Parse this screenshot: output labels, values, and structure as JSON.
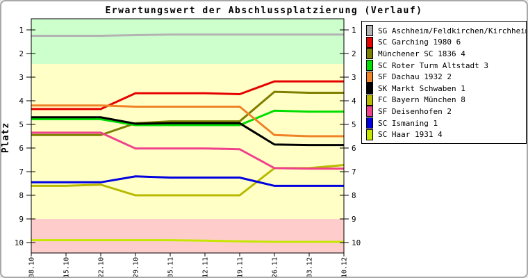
{
  "title": "Erwartungswert der Abschlussplatzierung (Verlauf)",
  "ylabel": "Platz",
  "chart_data": {
    "type": "line",
    "x": [
      "08.10",
      "15.10",
      "22.10",
      "29.10",
      "05.11",
      "12.11",
      "19.11",
      "26.11",
      "03.12",
      "10.12"
    ],
    "x_label_rotation": -90,
    "ylim": [
      0.5,
      10.5
    ],
    "yticks": [
      1,
      2,
      3,
      4,
      5,
      6,
      7,
      8,
      9,
      10
    ],
    "yaxis_reversed_rank": true,
    "grid": false,
    "legend_position": "right-outside",
    "bands": [
      {
        "name": "top-zone",
        "color": "#ccffcc",
        "from": 0.5,
        "to": 2.44
      },
      {
        "name": "middle-zone",
        "color": "#ffffc6",
        "from": 2.44,
        "to": 9.0
      },
      {
        "name": "bottom-zone",
        "color": "#ffcccc",
        "from": 9.0,
        "to": 10.5
      }
    ],
    "series": [
      {
        "name": "SG Aschheim/Feldkirchen/Kirchheim 2",
        "color": "#b3b3b3",
        "values": [
          1.25,
          1.25,
          1.25,
          1.22,
          1.2,
          1.2,
          1.2,
          1.2,
          1.2,
          1.2
        ]
      },
      {
        "name": "SC Garching 1980 6",
        "color": "#e60000",
        "values": [
          4.35,
          4.35,
          4.35,
          3.68,
          3.68,
          3.68,
          3.72,
          3.18,
          3.18,
          3.18
        ]
      },
      {
        "name": "Münchener SC 1836 4",
        "color": "#7e7e00",
        "values": [
          5.45,
          5.45,
          5.45,
          4.95,
          4.87,
          4.87,
          4.87,
          3.62,
          3.66,
          3.66
        ]
      },
      {
        "name": "SC Roter Turm Altstadt 3",
        "color": "#00dd00",
        "values": [
          4.78,
          4.78,
          4.78,
          5.03,
          5.03,
          5.03,
          5.03,
          4.42,
          4.46,
          4.46
        ]
      },
      {
        "name": "SF Dachau 1932 2",
        "color": "#f08228",
        "values": [
          4.2,
          4.2,
          4.2,
          4.25,
          4.25,
          4.25,
          4.25,
          5.45,
          5.5,
          5.5
        ]
      },
      {
        "name": "SK Markt Schwaben 1",
        "color": "#000000",
        "values": [
          4.7,
          4.7,
          4.7,
          4.97,
          4.95,
          4.95,
          4.95,
          5.85,
          5.87,
          5.87
        ]
      },
      {
        "name": "FC Bayern München 8",
        "color": "#b9b900",
        "values": [
          7.6,
          7.6,
          7.55,
          8.0,
          8.0,
          8.0,
          8.0,
          6.85,
          6.85,
          6.72
        ]
      },
      {
        "name": "SF Deisenhofen 2",
        "color": "#f0418c",
        "values": [
          5.35,
          5.35,
          5.35,
          6.02,
          6.02,
          6.02,
          6.05,
          6.85,
          6.87,
          6.87
        ]
      },
      {
        "name": "SC Ismaning 1",
        "color": "#0000e0",
        "values": [
          7.45,
          7.45,
          7.45,
          7.2,
          7.25,
          7.25,
          7.25,
          7.6,
          7.6,
          7.6
        ]
      },
      {
        "name": "SC Haar 1931 4",
        "color": "#c6e600",
        "values": [
          9.9,
          9.9,
          9.9,
          9.9,
          9.9,
          9.92,
          9.95,
          9.97,
          9.97,
          9.97
        ]
      }
    ]
  }
}
